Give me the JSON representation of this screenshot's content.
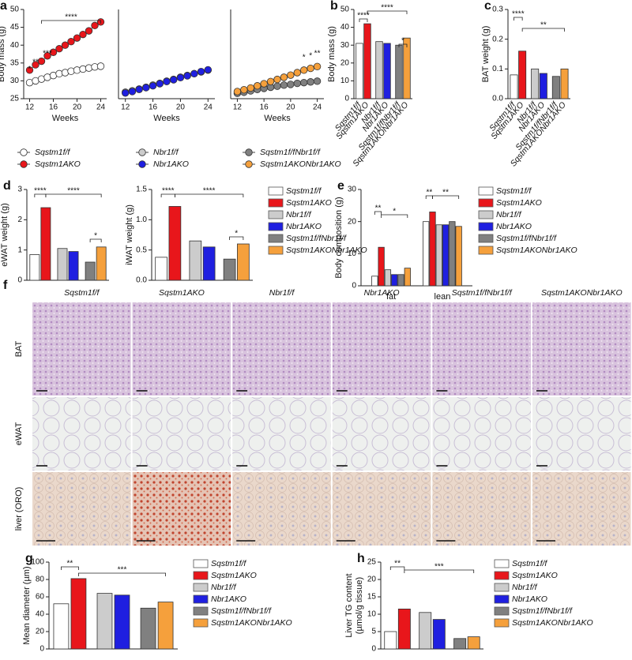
{
  "chart_data": [
    {
      "type": "line",
      "panel": "a",
      "ylabel": "Body mass (g)",
      "xlabel": "Weeks",
      "x": [
        12,
        13,
        14,
        15,
        16,
        17,
        18,
        19,
        20,
        21,
        22,
        23,
        24
      ],
      "xlim": [
        11,
        25
      ],
      "xticks": [
        12,
        16,
        20,
        24
      ],
      "ylim": [
        25,
        50
      ],
      "yticks": [
        25,
        30,
        35,
        40,
        45,
        50
      ],
      "series": [
        {
          "name": "Sqstm1f/f",
          "color": "#ffffff",
          "values": [
            29.5,
            30,
            30.5,
            31,
            31.5,
            32,
            32.3,
            32.7,
            33,
            33.3,
            33.6,
            33.9,
            34.1
          ]
        },
        {
          "name": "Sqstm1AKO",
          "color": "#e8161b",
          "values": [
            33,
            34.5,
            35.5,
            37,
            38,
            39,
            40,
            41,
            42,
            43,
            44,
            45.5,
            46.5
          ]
        }
      ],
      "annotations": [
        "*",
        "**",
        "***",
        "****"
      ]
    },
    {
      "type": "line",
      "xlabel": "Weeks",
      "x": [
        12,
        13,
        14,
        15,
        16,
        17,
        18,
        19,
        20,
        21,
        22,
        23,
        24
      ],
      "xlim": [
        11,
        25
      ],
      "xticks": [
        12,
        16,
        20,
        24
      ],
      "ylim": [
        25,
        50
      ],
      "series": [
        {
          "name": "Nbr1f/f",
          "color": "#cccccc",
          "values": [
            26.8,
            27.2,
            27.7,
            28.2,
            28.8,
            29.3,
            29.9,
            30.4,
            31,
            31.5,
            32,
            32.5,
            33
          ]
        },
        {
          "name": "Nbr1AKO",
          "color": "#1f1fe0",
          "values": [
            26.6,
            27,
            27.6,
            28.1,
            28.6,
            29.2,
            29.8,
            30.3,
            30.9,
            31.4,
            32,
            32.6,
            33.1
          ]
        }
      ]
    },
    {
      "type": "line",
      "xlabel": "Weeks",
      "x": [
        12,
        13,
        14,
        15,
        16,
        17,
        18,
        19,
        20,
        21,
        22,
        23,
        24
      ],
      "xlim": [
        11,
        25
      ],
      "xticks": [
        12,
        16,
        20,
        24
      ],
      "ylim": [
        25,
        50
      ],
      "series": [
        {
          "name": "Sqstm1f/fNbr1f/f",
          "color": "#808080",
          "values": [
            26.5,
            26.8,
            27.2,
            27.6,
            27.9,
            28.2,
            28.5,
            28.8,
            29,
            29.3,
            29.5,
            29.7,
            29.9
          ]
        },
        {
          "name": "Sqstm1AKONbr1AKO",
          "color": "#f5a03c",
          "values": [
            27,
            27.5,
            28,
            28.6,
            29.2,
            29.8,
            30.4,
            31,
            31.6,
            32.3,
            33,
            33.5,
            34
          ]
        }
      ],
      "annotations": [
        "*",
        "*",
        "**"
      ]
    },
    {
      "type": "bar",
      "panel": "b",
      "ylabel": "Body mass (g)",
      "categories": [
        "Sqstm1f/f",
        "Sqstm1AKO",
        "Nbr1f/f",
        "Nbr1AKO",
        "Sqstm1f/fNbr1f/f",
        "Sqstm1AKONbr1AKO"
      ],
      "values": [
        31,
        42,
        32,
        31,
        30,
        34
      ],
      "colors": [
        "#ffffff",
        "#e8161b",
        "#cccccc",
        "#1f1fe0",
        "#808080",
        "#f5a03c"
      ],
      "ylim": [
        0,
        50
      ],
      "yticks": [
        0,
        10,
        20,
        30,
        40,
        50
      ],
      "annotations": [
        "****",
        "****",
        "*"
      ]
    },
    {
      "type": "bar",
      "panel": "c",
      "ylabel": "BAT weight (g)",
      "categories": [
        "Sqstm1f/f",
        "Sqstm1AKO",
        "Nbr1f/f",
        "Nbr1AKO",
        "Sqstm1f/fNbr1f/f",
        "Sqstm1AKONbr1AKO"
      ],
      "values": [
        0.08,
        0.16,
        0.1,
        0.085,
        0.075,
        0.1
      ],
      "colors": [
        "#ffffff",
        "#e8161b",
        "#cccccc",
        "#1f1fe0",
        "#808080",
        "#f5a03c"
      ],
      "ylim": [
        0,
        0.3
      ],
      "yticks": [
        {
          "value": 0,
          "label": "0.0"
        },
        0.1,
        0.2,
        0.3
      ],
      "annotations": [
        "****",
        "**"
      ]
    },
    {
      "type": "bar",
      "panel": "d",
      "ylabel": "eWAT weight (g)",
      "categories": [
        "Sqstm1f/f",
        "Sqstm1AKO",
        "Nbr1f/f",
        "Nbr1AKO",
        "Sqstm1f/fNbr1f/f",
        "Sqstm1AKONbr1AKO"
      ],
      "values": [
        0.85,
        2.4,
        1.05,
        0.95,
        0.6,
        1.1
      ],
      "colors": [
        "#ffffff",
        "#e8161b",
        "#cccccc",
        "#1f1fe0",
        "#808080",
        "#f5a03c"
      ],
      "ylim": [
        0,
        3
      ],
      "yticks": [
        0,
        1,
        2,
        3
      ],
      "annotations": [
        "****",
        "****",
        "*"
      ]
    },
    {
      "type": "bar",
      "ylabel": "iWAT weight (g)",
      "categories": [
        "Sqstm1f/f",
        "Sqstm1AKO",
        "Nbr1f/f",
        "Nbr1AKO",
        "Sqstm1f/fNbr1f/f",
        "Sqstm1AKONbr1AKO"
      ],
      "values": [
        0.38,
        1.22,
        0.65,
        0.55,
        0.35,
        0.6
      ],
      "colors": [
        "#ffffff",
        "#e8161b",
        "#cccccc",
        "#1f1fe0",
        "#808080",
        "#f5a03c"
      ],
      "ylim": [
        0,
        1.5
      ],
      "yticks": [
        {
          "value": 0,
          "label": "0.0"
        },
        0.5,
        {
          "value": 1,
          "label": "1.0"
        },
        1.5
      ],
      "annotations": [
        "****",
        "****",
        "*"
      ]
    },
    {
      "type": "grouped_bar",
      "panel": "e",
      "ylabel": "Body composition (g)",
      "categories": [
        "fat",
        "lean"
      ],
      "ylim": [
        0,
        30
      ],
      "yticks": [
        0,
        10,
        20,
        30
      ],
      "series": [
        {
          "name": "Sqstm1f/f",
          "color": "#ffffff",
          "values": [
            3,
            20
          ]
        },
        {
          "name": "Sqstm1AKO",
          "color": "#e8161b",
          "values": [
            12,
            23
          ]
        },
        {
          "name": "Nbr1f/f",
          "color": "#cccccc",
          "values": [
            5,
            19
          ]
        },
        {
          "name": "Nbr1AKO",
          "color": "#1f1fe0",
          "values": [
            3.5,
            19
          ]
        },
        {
          "name": "Sqstm1f/fNbr1f/f",
          "color": "#808080",
          "values": [
            3.5,
            20
          ]
        },
        {
          "name": "Sqstm1AKONbr1AKO",
          "color": "#f5a03c",
          "values": [
            5.5,
            18.5
          ]
        }
      ],
      "annotations": [
        "**",
        "*",
        "**",
        "**"
      ]
    },
    {
      "type": "bar",
      "panel": "g",
      "ylabel": "Mean diameter (µm)",
      "categories": [
        "Sqstm1f/f",
        "Sqstm1AKO",
        "Nbr1f/f",
        "Nbr1AKO",
        "Sqstm1f/fNbr1f/f",
        "Sqstm1AKONbr1AKO"
      ],
      "values": [
        52,
        81,
        64,
        62,
        47,
        54
      ],
      "colors": [
        "#ffffff",
        "#e8161b",
        "#cccccc",
        "#1f1fe0",
        "#808080",
        "#f5a03c"
      ],
      "ylim": [
        0,
        100
      ],
      "yticks": [
        0,
        20,
        40,
        60,
        80,
        100
      ],
      "annotations": [
        "**",
        "***"
      ]
    },
    {
      "type": "bar",
      "panel": "h",
      "ylabel": "Liver TG content",
      "ylabel2": "(µmol/g tissue)",
      "categories": [
        "Sqstm1f/f",
        "Sqstm1AKO",
        "Nbr1f/f",
        "Nbr1AKO",
        "Sqstm1f/fNbr1f/f",
        "Sqstm1AKONbr1AKO"
      ],
      "values": [
        5,
        11.5,
        10.5,
        8.5,
        3,
        3.5
      ],
      "colors": [
        "#ffffff",
        "#e8161b",
        "#cccccc",
        "#1f1fe0",
        "#808080",
        "#f5a03c"
      ],
      "ylim": [
        0,
        25
      ],
      "yticks": [
        0,
        5,
        10,
        15,
        20,
        25
      ],
      "annotations": [
        "**",
        "***"
      ]
    }
  ],
  "histology": {
    "panel": "f",
    "columns": [
      "Sqstm1f/f",
      "Sqstm1AKO",
      "Nbr1f/f",
      "Nbr1AKO",
      "Sqstm1f/fNbr1f/f",
      "Sqstm1AKONbr1AKO"
    ],
    "rows": [
      "BAT",
      "eWAT",
      "liver (ORO)"
    ]
  }
}
